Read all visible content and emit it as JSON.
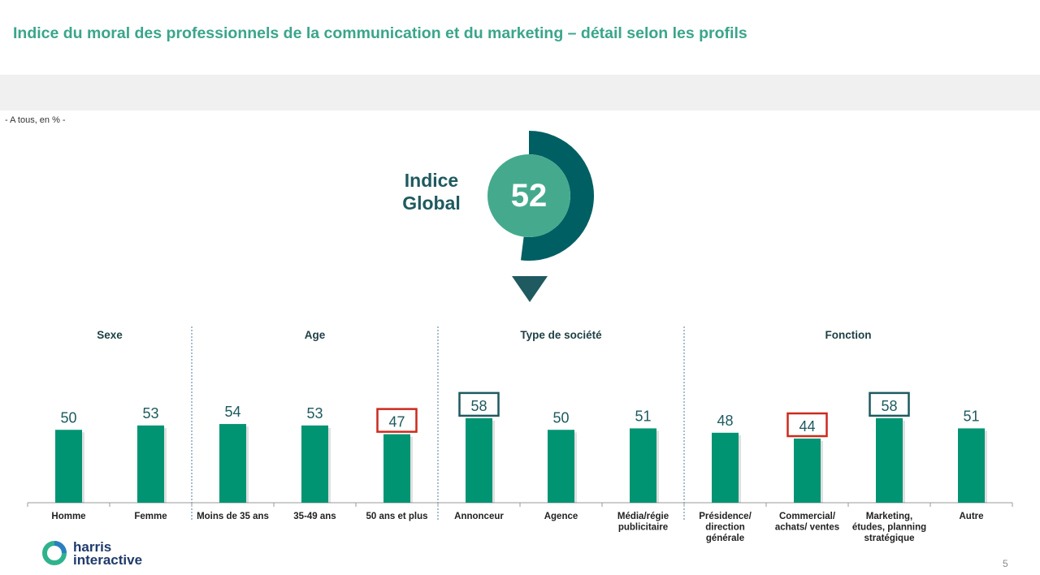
{
  "title": "Indice du moral des professionnels de la communication et du marketing – détail selon les profils",
  "base_note": "- A tous, en % -",
  "global": {
    "label_line1": "Indice",
    "label_line2": "Global",
    "value": "52",
    "value_num": 52
  },
  "colors": {
    "title": "#3aa58b",
    "bar": "#009473",
    "gauge_inner": "#45aa8d",
    "gauge_ring": "#005f63",
    "dark_teal": "#1e5a5f",
    "highlight_high": "#1e5a5f",
    "highlight_low": "#cc2a1d"
  },
  "chart_data": {
    "type": "bar",
    "groups": [
      {
        "name": "Sexe",
        "categories": [
          "Homme",
          "Femme"
        ],
        "values": [
          50,
          53
        ],
        "highlights": [
          "",
          ""
        ]
      },
      {
        "name": "Age",
        "categories": [
          "Moins de 35 ans",
          "35-49 ans",
          "50 ans et plus"
        ],
        "values": [
          54,
          53,
          47
        ],
        "highlights": [
          "",
          "",
          "low"
        ]
      },
      {
        "name": "Type de société",
        "categories": [
          "Annonceur",
          "Agence",
          "Média/régie publicitaire"
        ],
        "values": [
          58,
          50,
          51
        ],
        "highlights": [
          "high",
          "",
          ""
        ]
      },
      {
        "name": "Fonction",
        "categories": [
          "Présidence/ direction générale",
          "Commercial/ achats/ ventes",
          "Marketing, études, planning stratégique",
          "Autre"
        ],
        "values": [
          48,
          44,
          58,
          51
        ],
        "highlights": [
          "",
          "low",
          "high",
          ""
        ]
      }
    ],
    "category_label_lines": {
      "Média/régie publicitaire": [
        "Média/régie",
        "publicitaire"
      ],
      "Présidence/ direction générale": [
        "Présidence/",
        "direction",
        "générale"
      ],
      "Commercial/ achats/ ventes": [
        "Commercial/",
        "achats/ ventes"
      ],
      "Marketing, études, planning stratégique": [
        "Marketing,",
        "études, planning",
        "stratégique"
      ]
    }
  },
  "brand": {
    "line1": "harris",
    "line2": "interactive"
  },
  "page_number": "5"
}
